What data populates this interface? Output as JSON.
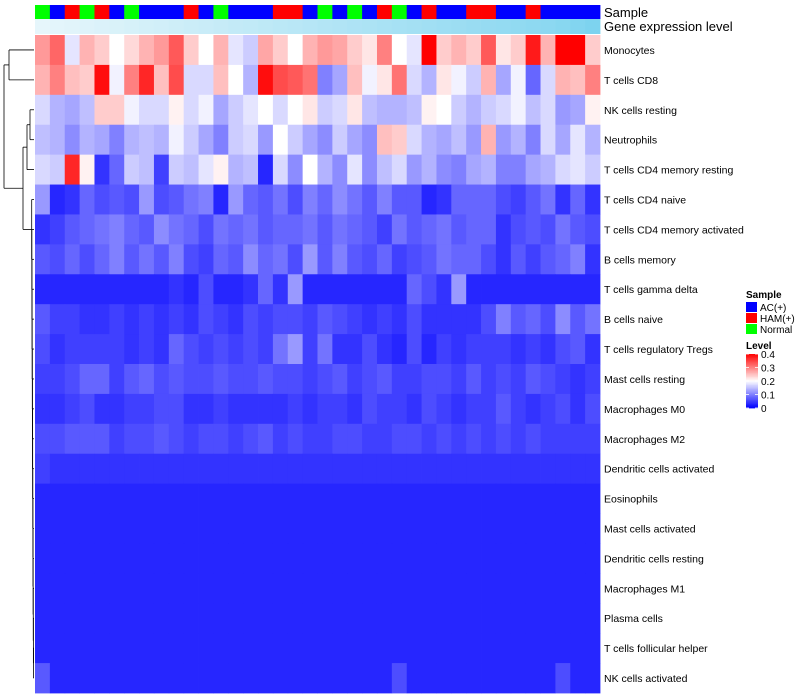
{
  "chart_data": {
    "type": "heatmap",
    "title": "",
    "annotation_tracks": [
      "Sample",
      "Gene expression level"
    ],
    "rows": [
      "Monocytes",
      "T cells CD8",
      "NK cells resting",
      "Neutrophils",
      "T cells CD4 memory resting",
      "T cells CD4 naive",
      "T cells CD4 memory activated",
      "B cells memory",
      "T cells gamma delta",
      "B cells naive",
      "T cells regulatory  Tregs",
      "Mast cells resting",
      "Macrophages M0",
      "Macrophages M2",
      "Dendritic cells activated",
      "Eosinophils",
      "Mast cells activated",
      "Dendritic cells resting",
      "Macrophages M1",
      "Plasma cells",
      "T cells follicular helper",
      "NK cells activated"
    ],
    "sample_groups": [
      "N",
      "A",
      "H",
      "N",
      "H",
      "A",
      "N",
      "A",
      "A",
      "A",
      "H",
      "A",
      "N",
      "A",
      "A",
      "A",
      "H",
      "H",
      "A",
      "N",
      "A",
      "N",
      "A",
      "H",
      "N",
      "A",
      "H",
      "A",
      "A",
      "H",
      "H",
      "A",
      "A",
      "H",
      "A",
      "A",
      "A",
      "A"
    ],
    "expression_gradient": [
      0.03,
      0.05,
      0.07,
      0.09,
      0.11,
      0.13,
      0.15,
      0.17,
      0.19,
      0.21,
      0.23,
      0.25,
      0.27,
      0.29,
      0.31,
      0.33,
      0.35,
      0.37,
      0.39,
      0.41,
      0.43,
      0.45,
      0.47,
      0.49,
      0.51,
      0.53,
      0.55,
      0.57,
      0.59,
      0.61,
      0.63,
      0.65,
      0.67,
      0.69,
      0.71,
      0.74,
      0.78,
      0.82
    ],
    "values": [
      [
        0.28,
        0.32,
        0.18,
        0.26,
        0.24,
        0.2,
        0.23,
        0.26,
        0.28,
        0.33,
        0.24,
        0.2,
        0.26,
        0.18,
        0.16,
        0.27,
        0.24,
        0.2,
        0.26,
        0.28,
        0.27,
        0.24,
        0.22,
        0.3,
        0.2,
        0.18,
        0.4,
        0.24,
        0.26,
        0.24,
        0.33,
        0.22,
        0.24,
        0.38,
        0.26,
        0.4,
        0.4,
        0.24
      ],
      [
        0.26,
        0.3,
        0.25,
        0.24,
        0.39,
        0.19,
        0.3,
        0.37,
        0.25,
        0.34,
        0.17,
        0.17,
        0.25,
        0.2,
        0.14,
        0.39,
        0.34,
        0.33,
        0.31,
        0.1,
        0.13,
        0.25,
        0.19,
        0.22,
        0.31,
        0.17,
        0.14,
        0.22,
        0.19,
        0.16,
        0.26,
        0.13,
        0.19,
        0.08,
        0.17,
        0.26,
        0.25,
        0.3
      ],
      [
        0.17,
        0.14,
        0.13,
        0.15,
        0.24,
        0.24,
        0.19,
        0.17,
        0.17,
        0.21,
        0.17,
        0.19,
        0.13,
        0.16,
        0.18,
        0.2,
        0.17,
        0.2,
        0.22,
        0.16,
        0.17,
        0.22,
        0.15,
        0.14,
        0.14,
        0.15,
        0.21,
        0.2,
        0.16,
        0.14,
        0.16,
        0.17,
        0.19,
        0.15,
        0.17,
        0.12,
        0.13,
        0.21
      ],
      [
        0.15,
        0.14,
        0.11,
        0.14,
        0.13,
        0.1,
        0.14,
        0.15,
        0.14,
        0.19,
        0.16,
        0.13,
        0.1,
        0.16,
        0.17,
        0.12,
        0.2,
        0.16,
        0.13,
        0.11,
        0.16,
        0.13,
        0.11,
        0.25,
        0.24,
        0.17,
        0.14,
        0.13,
        0.15,
        0.12,
        0.26,
        0.12,
        0.14,
        0.1,
        0.17,
        0.13,
        0.18,
        0.14
      ],
      [
        0.17,
        0.16,
        0.37,
        0.21,
        0.04,
        0.08,
        0.16,
        0.15,
        0.05,
        0.16,
        0.15,
        0.18,
        0.21,
        0.14,
        0.15,
        0.03,
        0.17,
        0.11,
        0.2,
        0.14,
        0.11,
        0.18,
        0.11,
        0.15,
        0.17,
        0.12,
        0.14,
        0.11,
        0.1,
        0.13,
        0.14,
        0.1,
        0.1,
        0.13,
        0.14,
        0.17,
        0.18,
        0.16
      ],
      [
        0.12,
        0.03,
        0.04,
        0.08,
        0.06,
        0.07,
        0.06,
        0.12,
        0.06,
        0.07,
        0.09,
        0.1,
        0.03,
        0.12,
        0.08,
        0.07,
        0.09,
        0.06,
        0.1,
        0.08,
        0.11,
        0.09,
        0.07,
        0.1,
        0.07,
        0.07,
        0.03,
        0.04,
        0.08,
        0.08,
        0.08,
        0.06,
        0.05,
        0.07,
        0.09,
        0.04,
        0.08,
        0.04
      ],
      [
        0.04,
        0.05,
        0.07,
        0.08,
        0.09,
        0.1,
        0.08,
        0.07,
        0.11,
        0.09,
        0.08,
        0.06,
        0.09,
        0.08,
        0.09,
        0.07,
        0.08,
        0.08,
        0.09,
        0.07,
        0.09,
        0.08,
        0.07,
        0.05,
        0.09,
        0.07,
        0.08,
        0.09,
        0.07,
        0.08,
        0.08,
        0.04,
        0.06,
        0.07,
        0.06,
        0.09,
        0.07,
        0.06
      ],
      [
        0.07,
        0.06,
        0.08,
        0.06,
        0.08,
        0.1,
        0.07,
        0.09,
        0.07,
        0.1,
        0.06,
        0.05,
        0.08,
        0.07,
        0.11,
        0.08,
        0.09,
        0.06,
        0.12,
        0.07,
        0.1,
        0.07,
        0.06,
        0.08,
        0.05,
        0.06,
        0.07,
        0.09,
        0.08,
        0.08,
        0.06,
        0.04,
        0.07,
        0.05,
        0.07,
        0.08,
        0.1,
        0.04
      ],
      [
        0.03,
        0.03,
        0.03,
        0.03,
        0.03,
        0.03,
        0.03,
        0.03,
        0.03,
        0.04,
        0.03,
        0.06,
        0.03,
        0.03,
        0.04,
        0.08,
        0.04,
        0.12,
        0.03,
        0.03,
        0.03,
        0.03,
        0.03,
        0.03,
        0.03,
        0.08,
        0.06,
        0.04,
        0.12,
        0.03,
        0.03,
        0.03,
        0.03,
        0.03,
        0.03,
        0.03,
        0.03,
        0.03
      ],
      [
        0.07,
        0.05,
        0.05,
        0.04,
        0.04,
        0.05,
        0.04,
        0.05,
        0.04,
        0.05,
        0.04,
        0.06,
        0.05,
        0.04,
        0.06,
        0.05,
        0.06,
        0.06,
        0.05,
        0.07,
        0.06,
        0.05,
        0.04,
        0.05,
        0.04,
        0.06,
        0.04,
        0.04,
        0.04,
        0.04,
        0.06,
        0.1,
        0.07,
        0.08,
        0.06,
        0.11,
        0.07,
        0.09
      ],
      [
        0.06,
        0.04,
        0.05,
        0.05,
        0.05,
        0.05,
        0.04,
        0.05,
        0.04,
        0.08,
        0.06,
        0.05,
        0.06,
        0.05,
        0.06,
        0.05,
        0.09,
        0.12,
        0.05,
        0.09,
        0.04,
        0.04,
        0.06,
        0.04,
        0.03,
        0.06,
        0.03,
        0.05,
        0.04,
        0.05,
        0.05,
        0.05,
        0.04,
        0.05,
        0.04,
        0.06,
        0.07,
        0.04
      ],
      [
        0.05,
        0.05,
        0.06,
        0.08,
        0.08,
        0.05,
        0.07,
        0.08,
        0.06,
        0.07,
        0.06,
        0.06,
        0.07,
        0.06,
        0.06,
        0.07,
        0.06,
        0.06,
        0.05,
        0.06,
        0.07,
        0.05,
        0.06,
        0.07,
        0.05,
        0.05,
        0.06,
        0.06,
        0.05,
        0.07,
        0.05,
        0.06,
        0.05,
        0.07,
        0.06,
        0.05,
        0.04,
        0.05
      ],
      [
        0.04,
        0.04,
        0.05,
        0.06,
        0.04,
        0.04,
        0.05,
        0.05,
        0.06,
        0.06,
        0.04,
        0.04,
        0.05,
        0.04,
        0.04,
        0.04,
        0.04,
        0.05,
        0.04,
        0.05,
        0.05,
        0.04,
        0.06,
        0.05,
        0.05,
        0.04,
        0.06,
        0.05,
        0.04,
        0.05,
        0.05,
        0.07,
        0.05,
        0.04,
        0.05,
        0.06,
        0.04,
        0.06
      ],
      [
        0.06,
        0.06,
        0.07,
        0.07,
        0.07,
        0.05,
        0.06,
        0.06,
        0.07,
        0.06,
        0.05,
        0.06,
        0.06,
        0.05,
        0.06,
        0.07,
        0.05,
        0.06,
        0.05,
        0.05,
        0.06,
        0.06,
        0.05,
        0.05,
        0.06,
        0.06,
        0.05,
        0.06,
        0.05,
        0.06,
        0.05,
        0.06,
        0.05,
        0.06,
        0.05,
        0.05,
        0.05,
        0.05
      ],
      [
        0.05,
        0.04,
        0.04,
        0.04,
        0.04,
        0.04,
        0.04,
        0.04,
        0.04,
        0.04,
        0.04,
        0.04,
        0.04,
        0.04,
        0.04,
        0.04,
        0.04,
        0.04,
        0.04,
        0.04,
        0.04,
        0.04,
        0.04,
        0.04,
        0.04,
        0.04,
        0.04,
        0.04,
        0.04,
        0.04,
        0.04,
        0.04,
        0.04,
        0.04,
        0.04,
        0.04,
        0.04,
        0.04
      ],
      [
        0.03,
        0.03,
        0.03,
        0.03,
        0.03,
        0.03,
        0.03,
        0.03,
        0.03,
        0.03,
        0.03,
        0.03,
        0.03,
        0.03,
        0.03,
        0.03,
        0.03,
        0.03,
        0.03,
        0.03,
        0.03,
        0.03,
        0.03,
        0.03,
        0.03,
        0.03,
        0.03,
        0.03,
        0.03,
        0.03,
        0.03,
        0.03,
        0.03,
        0.03,
        0.03,
        0.03,
        0.03,
        0.03
      ],
      [
        0.03,
        0.03,
        0.03,
        0.03,
        0.03,
        0.03,
        0.03,
        0.03,
        0.03,
        0.03,
        0.03,
        0.03,
        0.03,
        0.03,
        0.03,
        0.03,
        0.03,
        0.03,
        0.03,
        0.03,
        0.03,
        0.03,
        0.03,
        0.03,
        0.03,
        0.03,
        0.03,
        0.03,
        0.03,
        0.03,
        0.03,
        0.03,
        0.03,
        0.03,
        0.03,
        0.03,
        0.03,
        0.03
      ],
      [
        0.03,
        0.03,
        0.03,
        0.03,
        0.03,
        0.03,
        0.03,
        0.03,
        0.03,
        0.03,
        0.03,
        0.03,
        0.03,
        0.03,
        0.03,
        0.03,
        0.03,
        0.03,
        0.03,
        0.03,
        0.03,
        0.03,
        0.03,
        0.03,
        0.03,
        0.03,
        0.03,
        0.03,
        0.03,
        0.03,
        0.03,
        0.03,
        0.03,
        0.03,
        0.03,
        0.03,
        0.03,
        0.03
      ],
      [
        0.03,
        0.03,
        0.03,
        0.03,
        0.03,
        0.03,
        0.03,
        0.03,
        0.03,
        0.03,
        0.03,
        0.03,
        0.03,
        0.03,
        0.03,
        0.03,
        0.03,
        0.03,
        0.03,
        0.03,
        0.03,
        0.03,
        0.03,
        0.03,
        0.03,
        0.03,
        0.03,
        0.03,
        0.03,
        0.03,
        0.03,
        0.03,
        0.03,
        0.03,
        0.03,
        0.03,
        0.03,
        0.03
      ],
      [
        0.03,
        0.03,
        0.03,
        0.03,
        0.03,
        0.03,
        0.03,
        0.03,
        0.03,
        0.03,
        0.03,
        0.03,
        0.03,
        0.03,
        0.03,
        0.03,
        0.03,
        0.03,
        0.03,
        0.03,
        0.03,
        0.03,
        0.03,
        0.03,
        0.03,
        0.03,
        0.03,
        0.03,
        0.03,
        0.03,
        0.03,
        0.03,
        0.03,
        0.03,
        0.03,
        0.03,
        0.03,
        0.03
      ],
      [
        0.03,
        0.03,
        0.03,
        0.03,
        0.03,
        0.03,
        0.03,
        0.03,
        0.03,
        0.03,
        0.03,
        0.03,
        0.03,
        0.03,
        0.03,
        0.03,
        0.03,
        0.03,
        0.03,
        0.03,
        0.03,
        0.03,
        0.03,
        0.03,
        0.03,
        0.03,
        0.03,
        0.03,
        0.03,
        0.03,
        0.03,
        0.03,
        0.03,
        0.03,
        0.03,
        0.03,
        0.03,
        0.03
      ],
      [
        0.07,
        0.03,
        0.03,
        0.03,
        0.03,
        0.03,
        0.03,
        0.03,
        0.03,
        0.03,
        0.03,
        0.03,
        0.03,
        0.03,
        0.03,
        0.03,
        0.03,
        0.03,
        0.03,
        0.03,
        0.03,
        0.03,
        0.03,
        0.03,
        0.06,
        0.03,
        0.03,
        0.03,
        0.03,
        0.03,
        0.03,
        0.03,
        0.03,
        0.03,
        0.03,
        0.06,
        0.03,
        0.03
      ]
    ],
    "legend": {
      "sample_title": "Sample",
      "sample_entries": [
        {
          "key": "A",
          "label": "AC(+)",
          "color": "#0000ff"
        },
        {
          "key": "H",
          "label": "HAM(+)",
          "color": "#ff0000"
        },
        {
          "key": "N",
          "label": "Normal",
          "color": "#00ff00"
        }
      ],
      "level_title": "Level",
      "level_ticks": [
        0.4,
        0.3,
        0.2,
        0.1,
        0
      ],
      "level_range": [
        0,
        0.4
      ]
    },
    "colors": {
      "low": "#0000ff",
      "mid": "#ffffff",
      "high": "#ff0000",
      "gradient_light": "#e6f6fb",
      "gradient_dark": "#7dd3ef"
    },
    "xlabel": "",
    "ylabel": ""
  }
}
